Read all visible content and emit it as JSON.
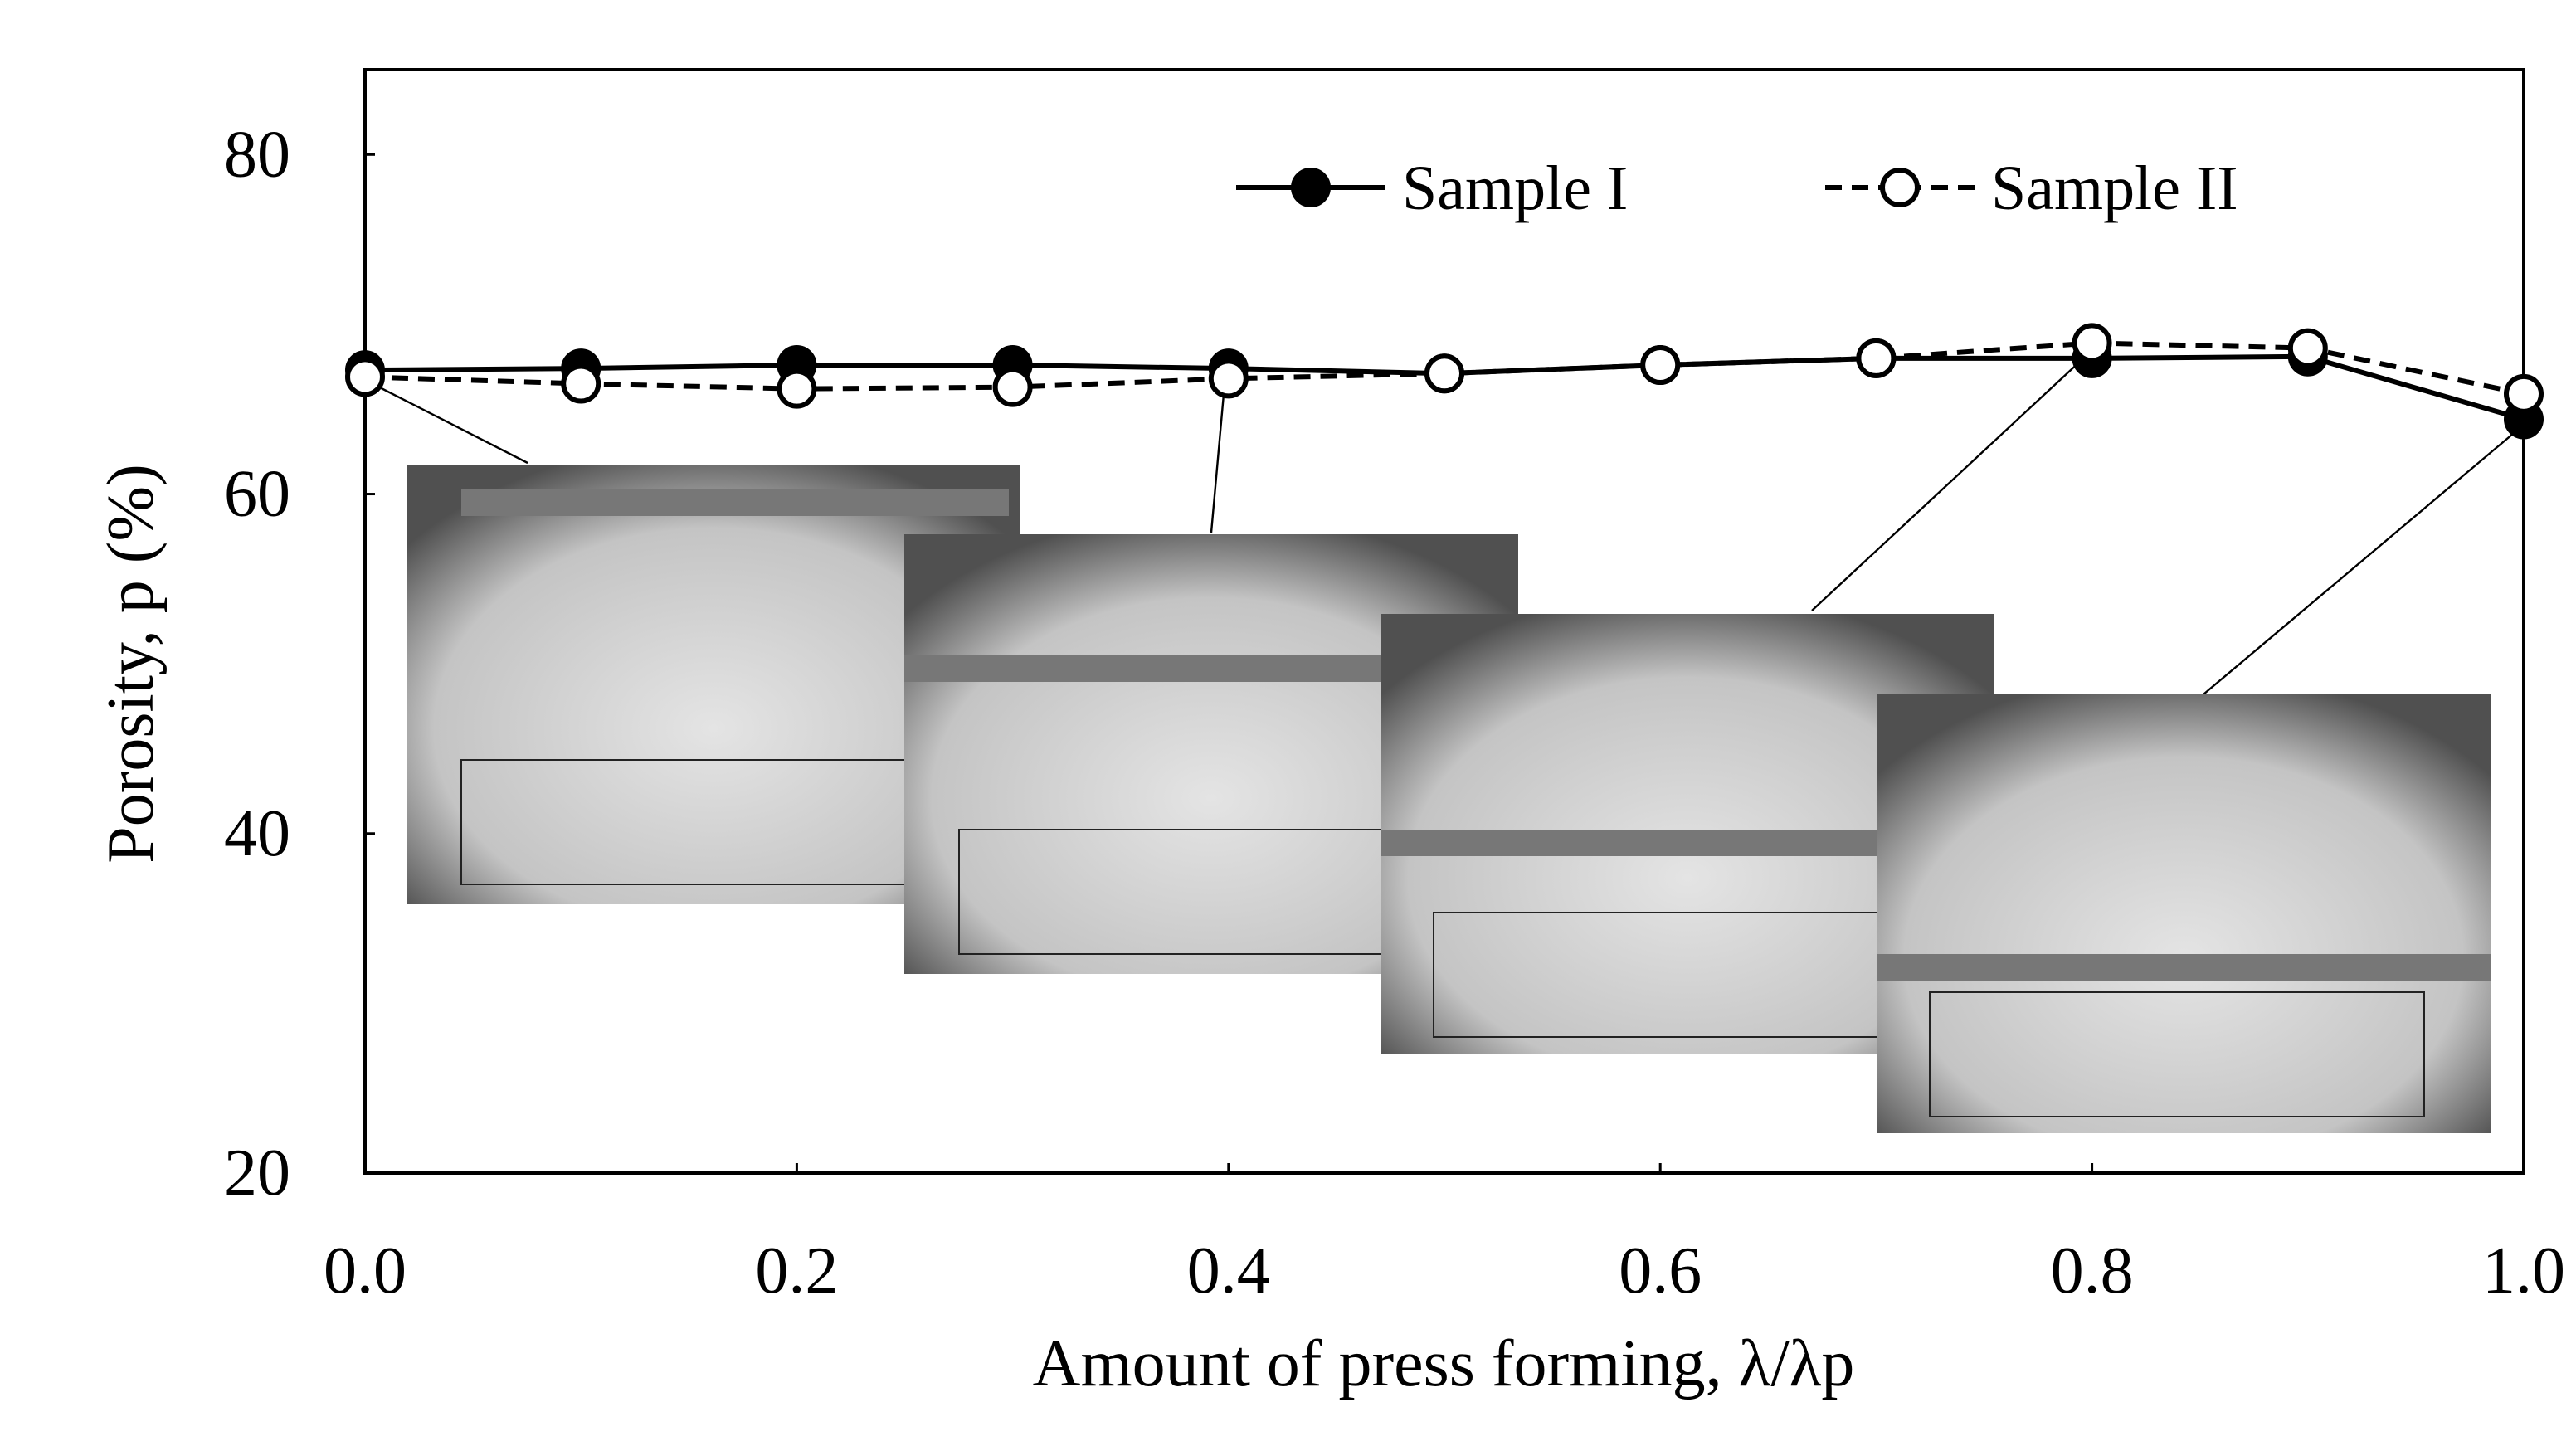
{
  "chart_data": {
    "type": "line",
    "x_label": "Amount of press forming, λ/λp",
    "y_label": "Porosity, p (%)",
    "x": [
      0,
      0.1,
      0.2,
      0.3,
      0.4,
      0.5,
      0.6,
      0.7,
      0.8,
      0.9,
      1.0
    ],
    "series": [
      {
        "name": "Sample I",
        "color": "#000000",
        "dash": "solid",
        "marker": "filled",
        "values": [
          67.3,
          67.4,
          67.6,
          67.6,
          67.4,
          67.1,
          67.6,
          68.0,
          68.0,
          68.1,
          64.4
        ]
      },
      {
        "name": "Sample II",
        "color": "#000000",
        "dash": "dashed",
        "marker": "open",
        "values": [
          66.9,
          66.5,
          66.2,
          66.3,
          66.8,
          67.1,
          67.6,
          68.0,
          68.9,
          68.6,
          65.9
        ]
      }
    ],
    "xlim": [
      0,
      1
    ],
    "xticks": [
      {
        "value": 0,
        "label": "0.0"
      },
      {
        "value": 0.2,
        "label": "0.2"
      },
      {
        "value": 0.4,
        "label": "0.4"
      },
      {
        "value": 0.6,
        "label": "0.6"
      },
      {
        "value": 0.8,
        "label": "0.8"
      },
      {
        "value": 1,
        "label": "1.0"
      }
    ],
    "ylim": [
      20,
      85
    ],
    "yticks": [
      20,
      40,
      60,
      80
    ],
    "grid": false,
    "legend": "top-right"
  }
}
